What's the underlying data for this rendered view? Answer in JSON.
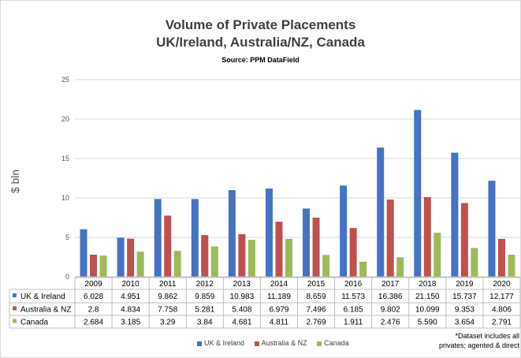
{
  "colors": {
    "uk": "#4472C4",
    "au": "#C0504D",
    "ca": "#9BBB59",
    "grid": "#d9d9d9",
    "axis": "#bfbfbf"
  },
  "note": "*Dataset includes all privates; agented & direct",
  "chart_data": {
    "type": "bar",
    "title": "Volume of Private Placements",
    "subtitle": "UK/Ireland, Australia/NZ, Canada",
    "source": "Source: PPM DataField",
    "ylabel": "$ bln",
    "ylim": [
      0,
      25
    ],
    "yticks": [
      0,
      5,
      10,
      15,
      20,
      25
    ],
    "categories": [
      "2009",
      "2010",
      "2011",
      "2012",
      "2013",
      "2014",
      "2015",
      "2016",
      "2017",
      "2018",
      "2019",
      "2020"
    ],
    "series": [
      {
        "name": "UK & Ireland",
        "color": "#4472C4",
        "values": [
          6.028,
          4.951,
          9.862,
          9.859,
          10.983,
          11.189,
          8.659,
          11.573,
          16.386,
          21.15,
          15.737,
          12.177
        ],
        "labels": [
          "6.028",
          "4.951",
          "9.862",
          "9.859",
          "10.983",
          "11.189",
          "8.659",
          "11.573",
          "16.386",
          "21.150",
          "15.737",
          "12.177"
        ]
      },
      {
        "name": "Australia & NZ",
        "color": "#C0504D",
        "values": [
          2.8,
          4.834,
          7.758,
          5.281,
          5.408,
          6.979,
          7.496,
          6.185,
          9.802,
          10.099,
          9.353,
          4.806
        ],
        "labels": [
          "2.8",
          "4.834",
          "7.758",
          "5.281",
          "5.408",
          "6.979",
          "7.496",
          "6.185",
          "9.802",
          "10.099",
          "9.353",
          "4.806"
        ]
      },
      {
        "name": "Canada",
        "color": "#9BBB59",
        "values": [
          2.684,
          3.185,
          3.29,
          3.84,
          4.681,
          4.811,
          2.769,
          1.911,
          2.476,
          5.59,
          3.654,
          2.791
        ],
        "labels": [
          "2.684",
          "3.185",
          "3.29",
          "3.84",
          "4.681",
          "4.811",
          "2.769",
          "1.911",
          "2.476",
          "5.590",
          "3.654",
          "2.791"
        ]
      }
    ]
  }
}
